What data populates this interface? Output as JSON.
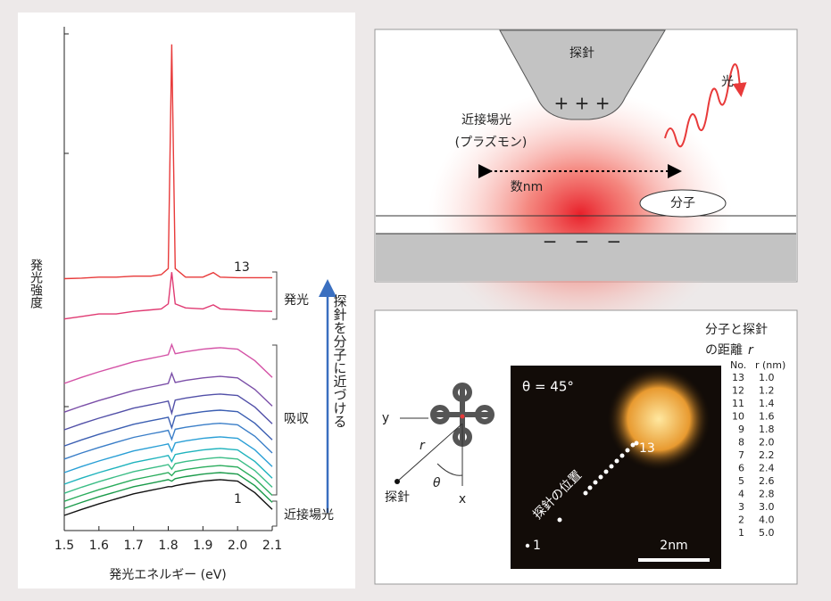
{
  "chart_data": {
    "type": "line",
    "x": [
      1.5,
      1.55,
      1.6,
      1.65,
      1.7,
      1.75,
      1.78,
      1.8,
      1.81,
      1.82,
      1.85,
      1.9,
      1.93,
      1.95,
      2.0,
      2.05,
      2.1
    ],
    "xlim": [
      1.5,
      2.1
    ],
    "xticks": [
      1.5,
      1.6,
      1.7,
      1.8,
      1.9,
      {
        "value": 2,
        "label": "2.0"
      },
      2.1
    ],
    "ylim": [
      0,
      100
    ],
    "xlabel": "発光エネルギー (eV)",
    "ylabel": "発光強度",
    "series": [
      {
        "color": "#111111",
        "values": [
          3,
          4.2,
          5.3,
          6.3,
          7.3,
          8,
          8.4,
          8.7,
          8.7,
          8.9,
          9.3,
          9.8,
          10,
          10.1,
          9.8,
          7.5,
          4.2
        ]
      },
      {
        "color": "#1a9a4a",
        "values": [
          4.4,
          5.6,
          6.7,
          7.7,
          8.7,
          9.4,
          9.8,
          10.1,
          9.8,
          10.3,
          10.7,
          11.2,
          11.4,
          11.5,
          11.2,
          8.9,
          5.6
        ]
      },
      {
        "color": "#2aac5c",
        "values": [
          5.8,
          7,
          8.1,
          9.1,
          10.1,
          10.8,
          11.2,
          11.5,
          10.9,
          11.7,
          12.1,
          12.6,
          12.8,
          12.9,
          12.6,
          10.3,
          7
        ]
      },
      {
        "color": "#3bbd86",
        "values": [
          7.4,
          8.6,
          9.7,
          10.7,
          11.7,
          12.4,
          12.8,
          13.1,
          12.2,
          13.3,
          13.7,
          14.2,
          14.4,
          14.5,
          14.2,
          11.9,
          8.6
        ]
      },
      {
        "color": "#1fb3bd",
        "values": [
          9.2,
          10.4,
          11.5,
          12.5,
          13.5,
          14.2,
          14.6,
          14.9,
          13.7,
          15.1,
          15.5,
          16,
          16.2,
          16.3,
          16,
          13.7,
          10.4
        ]
      },
      {
        "color": "#2a9fd6",
        "values": [
          11.5,
          12.7,
          13.8,
          14.8,
          15.8,
          16.5,
          16.9,
          17.2,
          15.7,
          17.4,
          17.8,
          18.3,
          18.5,
          18.6,
          18.3,
          16,
          12.7
        ]
      },
      {
        "color": "#3a7ec8",
        "values": [
          14.2,
          15.4,
          16.5,
          17.5,
          18.5,
          19.2,
          19.6,
          19.9,
          18.1,
          20.1,
          20.5,
          21,
          21.2,
          21.3,
          21,
          18.7,
          15.4
        ]
      },
      {
        "color": "#3c5fb2",
        "values": [
          16.8,
          18,
          19.1,
          20.1,
          21.1,
          21.8,
          22.2,
          22.5,
          20.4,
          22.7,
          23.1,
          23.6,
          23.8,
          23.9,
          23.6,
          21.3,
          18
        ]
      },
      {
        "color": "#5250a8",
        "values": [
          20,
          21.2,
          22.3,
          23.3,
          24.3,
          25,
          25.4,
          25.7,
          23.3,
          25.9,
          26.3,
          26.8,
          27,
          27.1,
          26.8,
          24.5,
          21.2
        ]
      },
      {
        "color": "#7b4fa8",
        "values": [
          23.5,
          24.7,
          25.8,
          26.8,
          27.8,
          28.5,
          28.9,
          29.2,
          31.2,
          29.4,
          29.8,
          30.3,
          30.5,
          30.6,
          30.3,
          28,
          24.7
        ]
      },
      {
        "color": "#d452a6",
        "values": [
          29.2,
          30.4,
          31.5,
          32.5,
          33.5,
          34.2,
          34.6,
          34.9,
          36.9,
          35.1,
          35.5,
          36,
          36.2,
          36.3,
          36,
          33.7,
          30.4
        ]
      },
      {
        "color": "#e03a72",
        "values": [
          42,
          42.5,
          43,
          43,
          43.5,
          43.8,
          44,
          45,
          51.3,
          45,
          44.2,
          44,
          44.8,
          44,
          43.8,
          43.6,
          43.5
        ]
      },
      {
        "color": "#e83a3a",
        "values": [
          50,
          50.1,
          50.3,
          50.3,
          50.5,
          50.5,
          50.8,
          52,
          96.5,
          52,
          50.3,
          50.3,
          51.2,
          50.3,
          50.2,
          50.2,
          50.2
        ]
      }
    ],
    "curve_labels": [
      "13",
      "1"
    ],
    "brackets": [
      "発光",
      "吸収",
      "近接場光"
    ],
    "arrow_label": "探針を分子に近づける"
  },
  "schematic": {
    "tip": "探針",
    "tip_charge": "+ + +",
    "near_field": "近接場光",
    "plasmon": "(プラズモン)",
    "scale": "数nm",
    "molecule": "分子",
    "light": "光",
    "surface_charge": "−   −   −"
  },
  "image_panel": {
    "title": [
      "分子と探針",
      "の距離"
    ],
    "title_symbol": "r",
    "axis_y": "y",
    "axis_x": "x",
    "r": "r",
    "theta": "θ",
    "tip": "探針",
    "angle": "θ = 45°",
    "tip_positions": "探針の位置",
    "first": "1",
    "last": "13",
    "scale_bar": "2nm",
    "table": {
      "headers": [
        "No.",
        "r (nm)"
      ],
      "rows": [
        [
          "13",
          "1.0"
        ],
        [
          "12",
          "1.2"
        ],
        [
          "11",
          "1.4"
        ],
        [
          "10",
          "1.6"
        ],
        [
          "9",
          "1.8"
        ],
        [
          "8",
          "2.0"
        ],
        [
          "7",
          "2.2"
        ],
        [
          "6",
          "2.4"
        ],
        [
          "5",
          "2.6"
        ],
        [
          "4",
          "2.8"
        ],
        [
          "3",
          "3.0"
        ],
        [
          "2",
          "4.0"
        ],
        [
          "1",
          "5.0"
        ]
      ]
    }
  }
}
